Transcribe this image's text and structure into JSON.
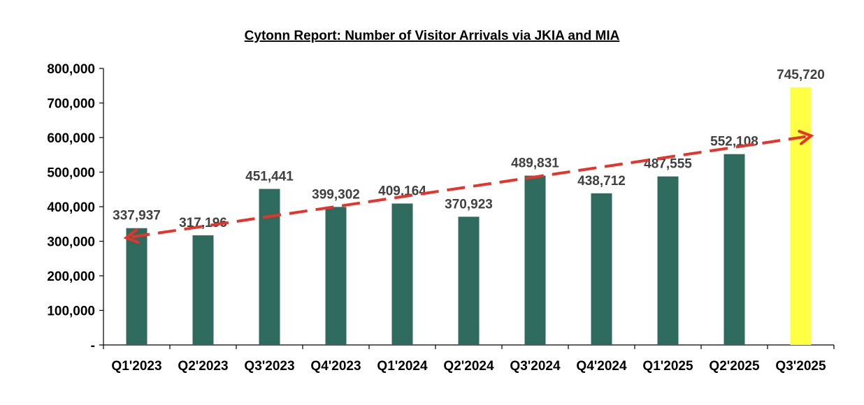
{
  "chart_data": {
    "type": "bar",
    "title": "Cytonn Report: Number of Visitor Arrivals via JKIA and MIA",
    "categories": [
      "Q1'2023",
      "Q2'2023",
      "Q3'2023",
      "Q4'2023",
      "Q1'2024",
      "Q2'2024",
      "Q3'2024",
      "Q4'2024",
      "Q1'2025",
      "Q2'2025",
      "Q3'2025"
    ],
    "values": [
      337937,
      317196,
      451441,
      399302,
      409164,
      370923,
      489831,
      438712,
      487555,
      552108,
      745720
    ],
    "data_labels": [
      "337,937",
      "317,196",
      "451,441",
      "399,302",
      "409,164",
      "370,923",
      "489,831",
      "438,712",
      "487,555",
      "552,108",
      "745,720"
    ],
    "ylim": [
      0,
      800000
    ],
    "y_ticks": [
      0,
      100000,
      200000,
      300000,
      400000,
      500000,
      600000,
      700000,
      800000
    ],
    "y_tick_labels": [
      "-",
      "100,000",
      "200,000",
      "300,000",
      "400,000",
      "500,000",
      "600,000",
      "700,000",
      "800,000"
    ],
    "xlabel": "",
    "ylabel": "",
    "grid": false,
    "legend": "none",
    "colors": {
      "bar": "#2e6b5e",
      "highlight_bar": "#ffff44",
      "trend_arrow": "#e8332a",
      "axis": "#000000",
      "data_label": "#404040"
    },
    "highlight_index": 10,
    "trend_arrow": {
      "style": "dashed",
      "bidirectional": true,
      "from": {
        "x": "Q1'2023",
        "y": 310000
      },
      "to": {
        "x": "Q3'2025",
        "y": 605000
      }
    }
  }
}
